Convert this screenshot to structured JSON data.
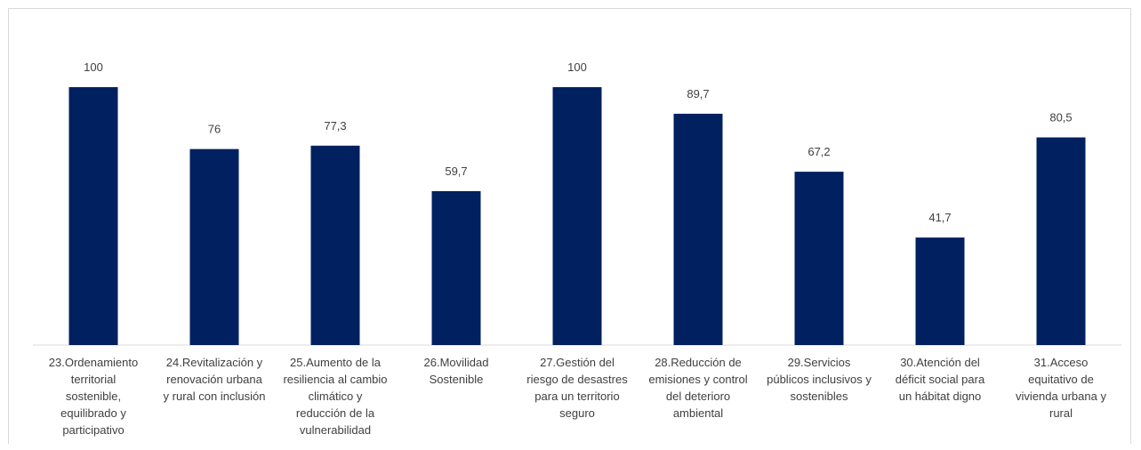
{
  "chart_data": {
    "type": "bar",
    "categories": [
      "23.Ordenamiento territorial sostenible, equilibrado y participativo",
      "24.Revitalización y renovación urbana y rural con inclusión",
      "25.Aumento de la resiliencia al cambio climático y reducción de la vulnerabilidad",
      "26.Movilidad Sostenible",
      "27.Gestión del riesgo de desastres para un territorio seguro",
      "28.Reducción de emisiones y control del deterioro ambiental",
      "29.Servicios públicos inclusivos y sostenibles",
      "30.Atención del déficit social para un hábitat digno",
      "31.Acceso equitativo de vivienda urbana y rural"
    ],
    "category_lines": [
      [
        "23.Ordenamiento",
        "territorial",
        "sostenible,",
        "equilibrado y",
        "participativo"
      ],
      [
        "24.Revitalización y",
        "renovación urbana",
        "y rural con inclusión"
      ],
      [
        "25.Aumento de la",
        "resiliencia al cambio",
        "climático y",
        "reducción de la",
        "vulnerabilidad"
      ],
      [
        "26.Movilidad",
        "Sostenible"
      ],
      [
        "27.Gestión del",
        "riesgo de desastres",
        "para un territorio",
        "seguro"
      ],
      [
        "28.Reducción de",
        "emisiones y control",
        "del deterioro",
        "ambiental"
      ],
      [
        "29.Servicios",
        "públicos inclusivos y",
        "sostenibles"
      ],
      [
        "30.Atención del",
        "déficit social para",
        "un hábitat digno"
      ],
      [
        "31.Acceso",
        "equitativo de",
        "vivienda urbana y",
        "rural"
      ]
    ],
    "values": [
      100,
      76,
      77.3,
      59.7,
      100,
      89.7,
      67.2,
      41.7,
      80.5
    ],
    "value_labels": [
      "100",
      "76",
      "77,3",
      "59,7",
      "100",
      "89,7",
      "67,2",
      "41,7",
      "80,5"
    ],
    "title": "",
    "xlabel": "",
    "ylabel": "",
    "ylim": [
      0,
      100
    ],
    "grid": false,
    "legend": "none",
    "bar_color": "#002060",
    "axis_color": "#d9d9d9",
    "text_color": "#404040"
  }
}
